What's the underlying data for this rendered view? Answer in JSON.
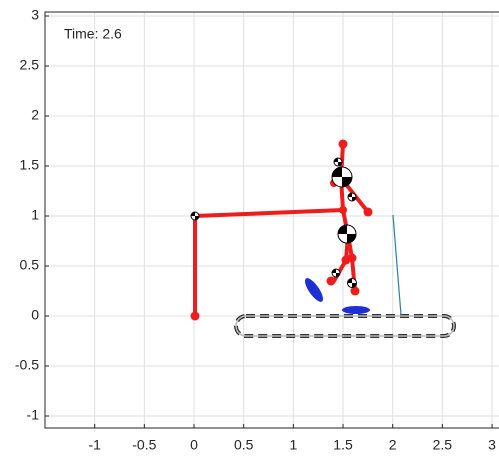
{
  "chart_data": {
    "type": "scatter",
    "annotation": "Time: 2.6",
    "xlim": [
      -1.5,
      3.07
    ],
    "ylim": [
      -1.12,
      3.04
    ],
    "xticks": [
      -1,
      -0.5,
      0,
      0.5,
      1,
      1.5,
      2,
      2.5,
      3
    ],
    "yticks": [
      -1,
      -0.5,
      0,
      0.5,
      1,
      1.5,
      2,
      2.5,
      3
    ],
    "grid": true
  }
}
